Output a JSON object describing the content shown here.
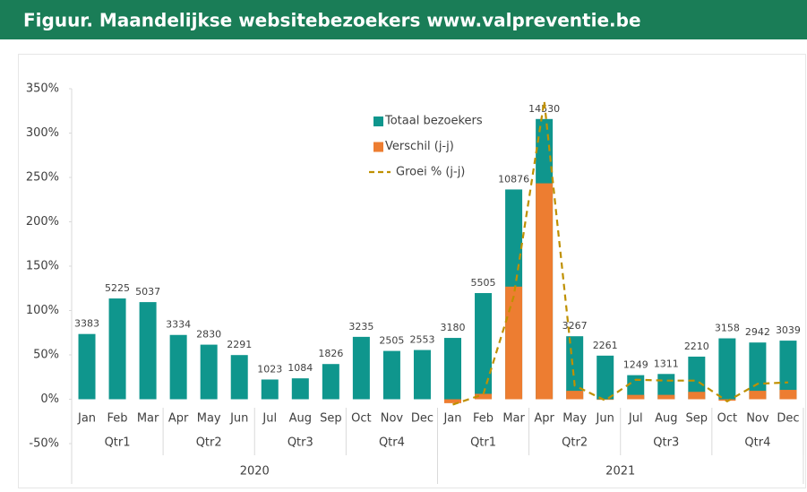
{
  "chart_data": {
    "type": "combo",
    "title": "Figuur. Maandelijkse websitebezoekers www.valpreventie.be",
    "groups": [
      {
        "name": "2020",
        "quarters": [
          {
            "name": "Qtr1",
            "months": [
              "Jan",
              "Feb",
              "Mar"
            ]
          },
          {
            "name": "Qtr2",
            "months": [
              "Apr",
              "May",
              "Jun"
            ]
          },
          {
            "name": "Qtr3",
            "months": [
              "Jul",
              "Aug",
              "Sep"
            ]
          },
          {
            "name": "Qtr4",
            "months": [
              "Oct",
              "Nov",
              "Dec"
            ]
          }
        ]
      },
      {
        "name": "2021",
        "quarters": [
          {
            "name": "Qtr1",
            "months": [
              "Jan",
              "Feb",
              "Mar"
            ]
          },
          {
            "name": "Qtr2",
            "months": [
              "Apr",
              "May",
              "Jun"
            ]
          },
          {
            "name": "Qtr3",
            "months": [
              "Jul",
              "Aug",
              "Sep"
            ]
          },
          {
            "name": "Qtr4",
            "months": [
              "Oct",
              "Nov",
              "Dec"
            ]
          }
        ]
      }
    ],
    "ylim": [
      -50,
      350
    ],
    "yticks": [
      {
        "value": -50,
        "label": "-50%"
      },
      {
        "value": 0,
        "label": "0%"
      },
      {
        "value": 50,
        "label": "50%"
      },
      {
        "value": 100,
        "label": "100%"
      },
      {
        "value": 150,
        "label": "150%"
      },
      {
        "value": 200,
        "label": "200%"
      },
      {
        "value": 250,
        "label": "250%"
      },
      {
        "value": 300,
        "label": "300%"
      },
      {
        "value": 350,
        "label": "350%"
      }
    ],
    "y2lim": [
      -2300,
      16100
    ],
    "series": [
      {
        "name": "Totaal bezoekers",
        "kind": "bar",
        "axis": "y2",
        "color": "#0f968d",
        "values": [
          3383,
          5225,
          5037,
          3334,
          2830,
          2291,
          1023,
          1084,
          1826,
          3235,
          2505,
          2553,
          3180,
          5505,
          10876,
          14530,
          3267,
          2261,
          1249,
          1311,
          2210,
          3158,
          2942,
          3039
        ]
      },
      {
        "name": "Verschil (j-j)",
        "kind": "bar",
        "axis": "y2",
        "color": "#ed7d31",
        "values": [
          null,
          null,
          null,
          null,
          null,
          null,
          null,
          null,
          null,
          null,
          null,
          null,
          -203,
          280,
          5839,
          11196,
          437,
          -30,
          226,
          227,
          384,
          -77,
          437,
          486
        ]
      },
      {
        "name": "Groei % (j-j)",
        "kind": "line",
        "color": "#bf9000",
        "values": [
          null,
          null,
          null,
          null,
          null,
          null,
          null,
          null,
          null,
          null,
          null,
          null,
          -6,
          5.4,
          116,
          336,
          15.4,
          -1.3,
          22,
          21,
          21,
          -2.4,
          17.4,
          19
        ]
      }
    ]
  }
}
